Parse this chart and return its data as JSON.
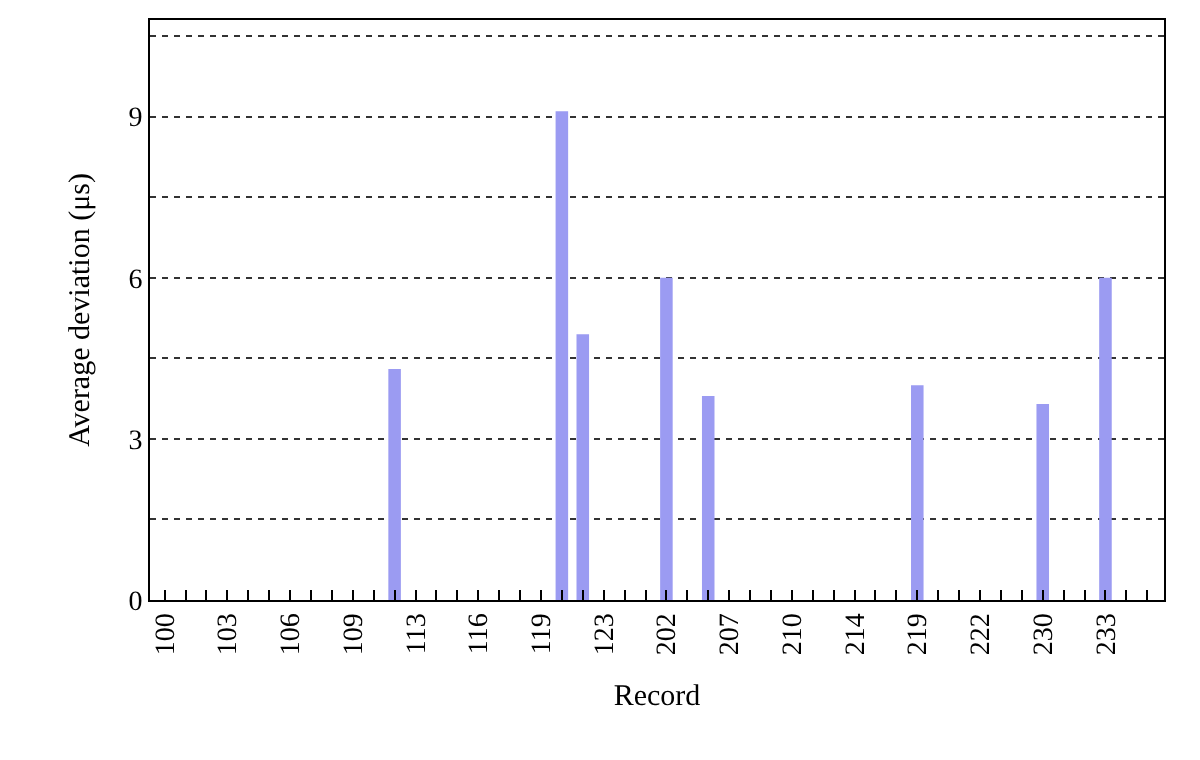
{
  "chart_data": {
    "type": "bar",
    "xlabel": "Record",
    "ylabel": "Average deviation (μs)",
    "categories": [
      "100",
      null,
      null,
      "103",
      null,
      null,
      "106",
      null,
      null,
      "109",
      null,
      null,
      "113",
      null,
      null,
      "116",
      null,
      null,
      "119",
      null,
      null,
      "123",
      null,
      null,
      "202",
      null,
      null,
      "207",
      null,
      null,
      "210",
      null,
      null,
      "214",
      null,
      null,
      "219",
      null,
      null,
      "222",
      null,
      null,
      "230",
      null,
      null,
      "233",
      null,
      null
    ],
    "values": [
      0,
      0,
      0,
      0,
      0,
      0,
      0,
      0,
      0,
      0,
      0,
      4.3,
      0,
      0,
      0,
      0,
      0,
      0,
      0,
      9.1,
      4.95,
      0,
      0,
      0,
      6.0,
      0,
      3.8,
      0,
      0,
      0,
      0,
      0,
      0,
      0,
      0,
      0,
      4.0,
      0,
      0,
      0,
      0,
      0,
      3.65,
      0,
      0,
      6.0,
      0,
      0
    ],
    "color": "#9b9bf2",
    "ylim": [
      0,
      10.8
    ],
    "yticks": [
      0,
      {
        "value": 1.5,
        "label": null
      },
      3,
      {
        "value": 4.5,
        "label": null
      },
      6,
      {
        "value": 7.5,
        "label": null
      },
      9,
      {
        "value": 10.5,
        "label": null
      }
    ],
    "grid": "y"
  }
}
